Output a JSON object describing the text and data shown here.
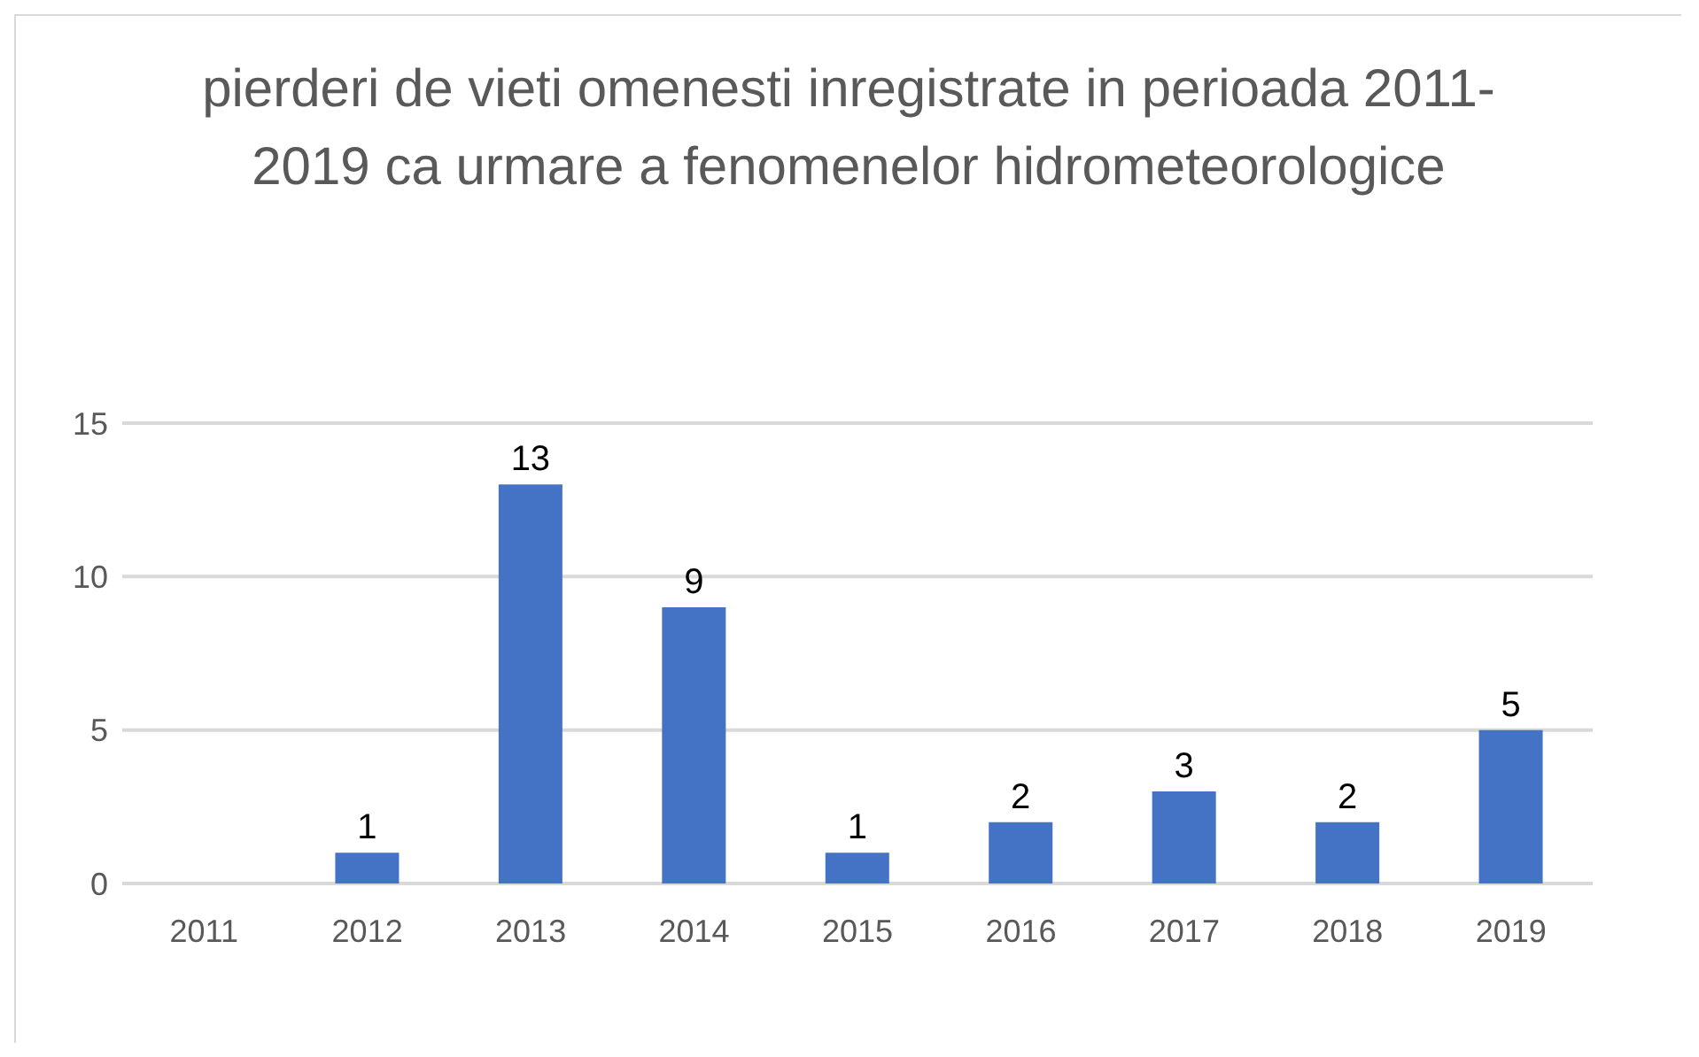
{
  "chart_data": {
    "type": "bar",
    "title": "pierderi de vieti omenesti inregistrate in perioada 2011-2019 ca urmare a fenomenelor hidrometeorologice",
    "categories": [
      "2011",
      "2012",
      "2013",
      "2014",
      "2015",
      "2016",
      "2017",
      "2018",
      "2019"
    ],
    "values": [
      null,
      1,
      13,
      9,
      1,
      2,
      3,
      2,
      5
    ],
    "color": "#4472c4",
    "ylim": [
      0,
      15
    ],
    "yticks": [
      0,
      5,
      10,
      15
    ],
    "grid": "y",
    "data_labels": true
  }
}
